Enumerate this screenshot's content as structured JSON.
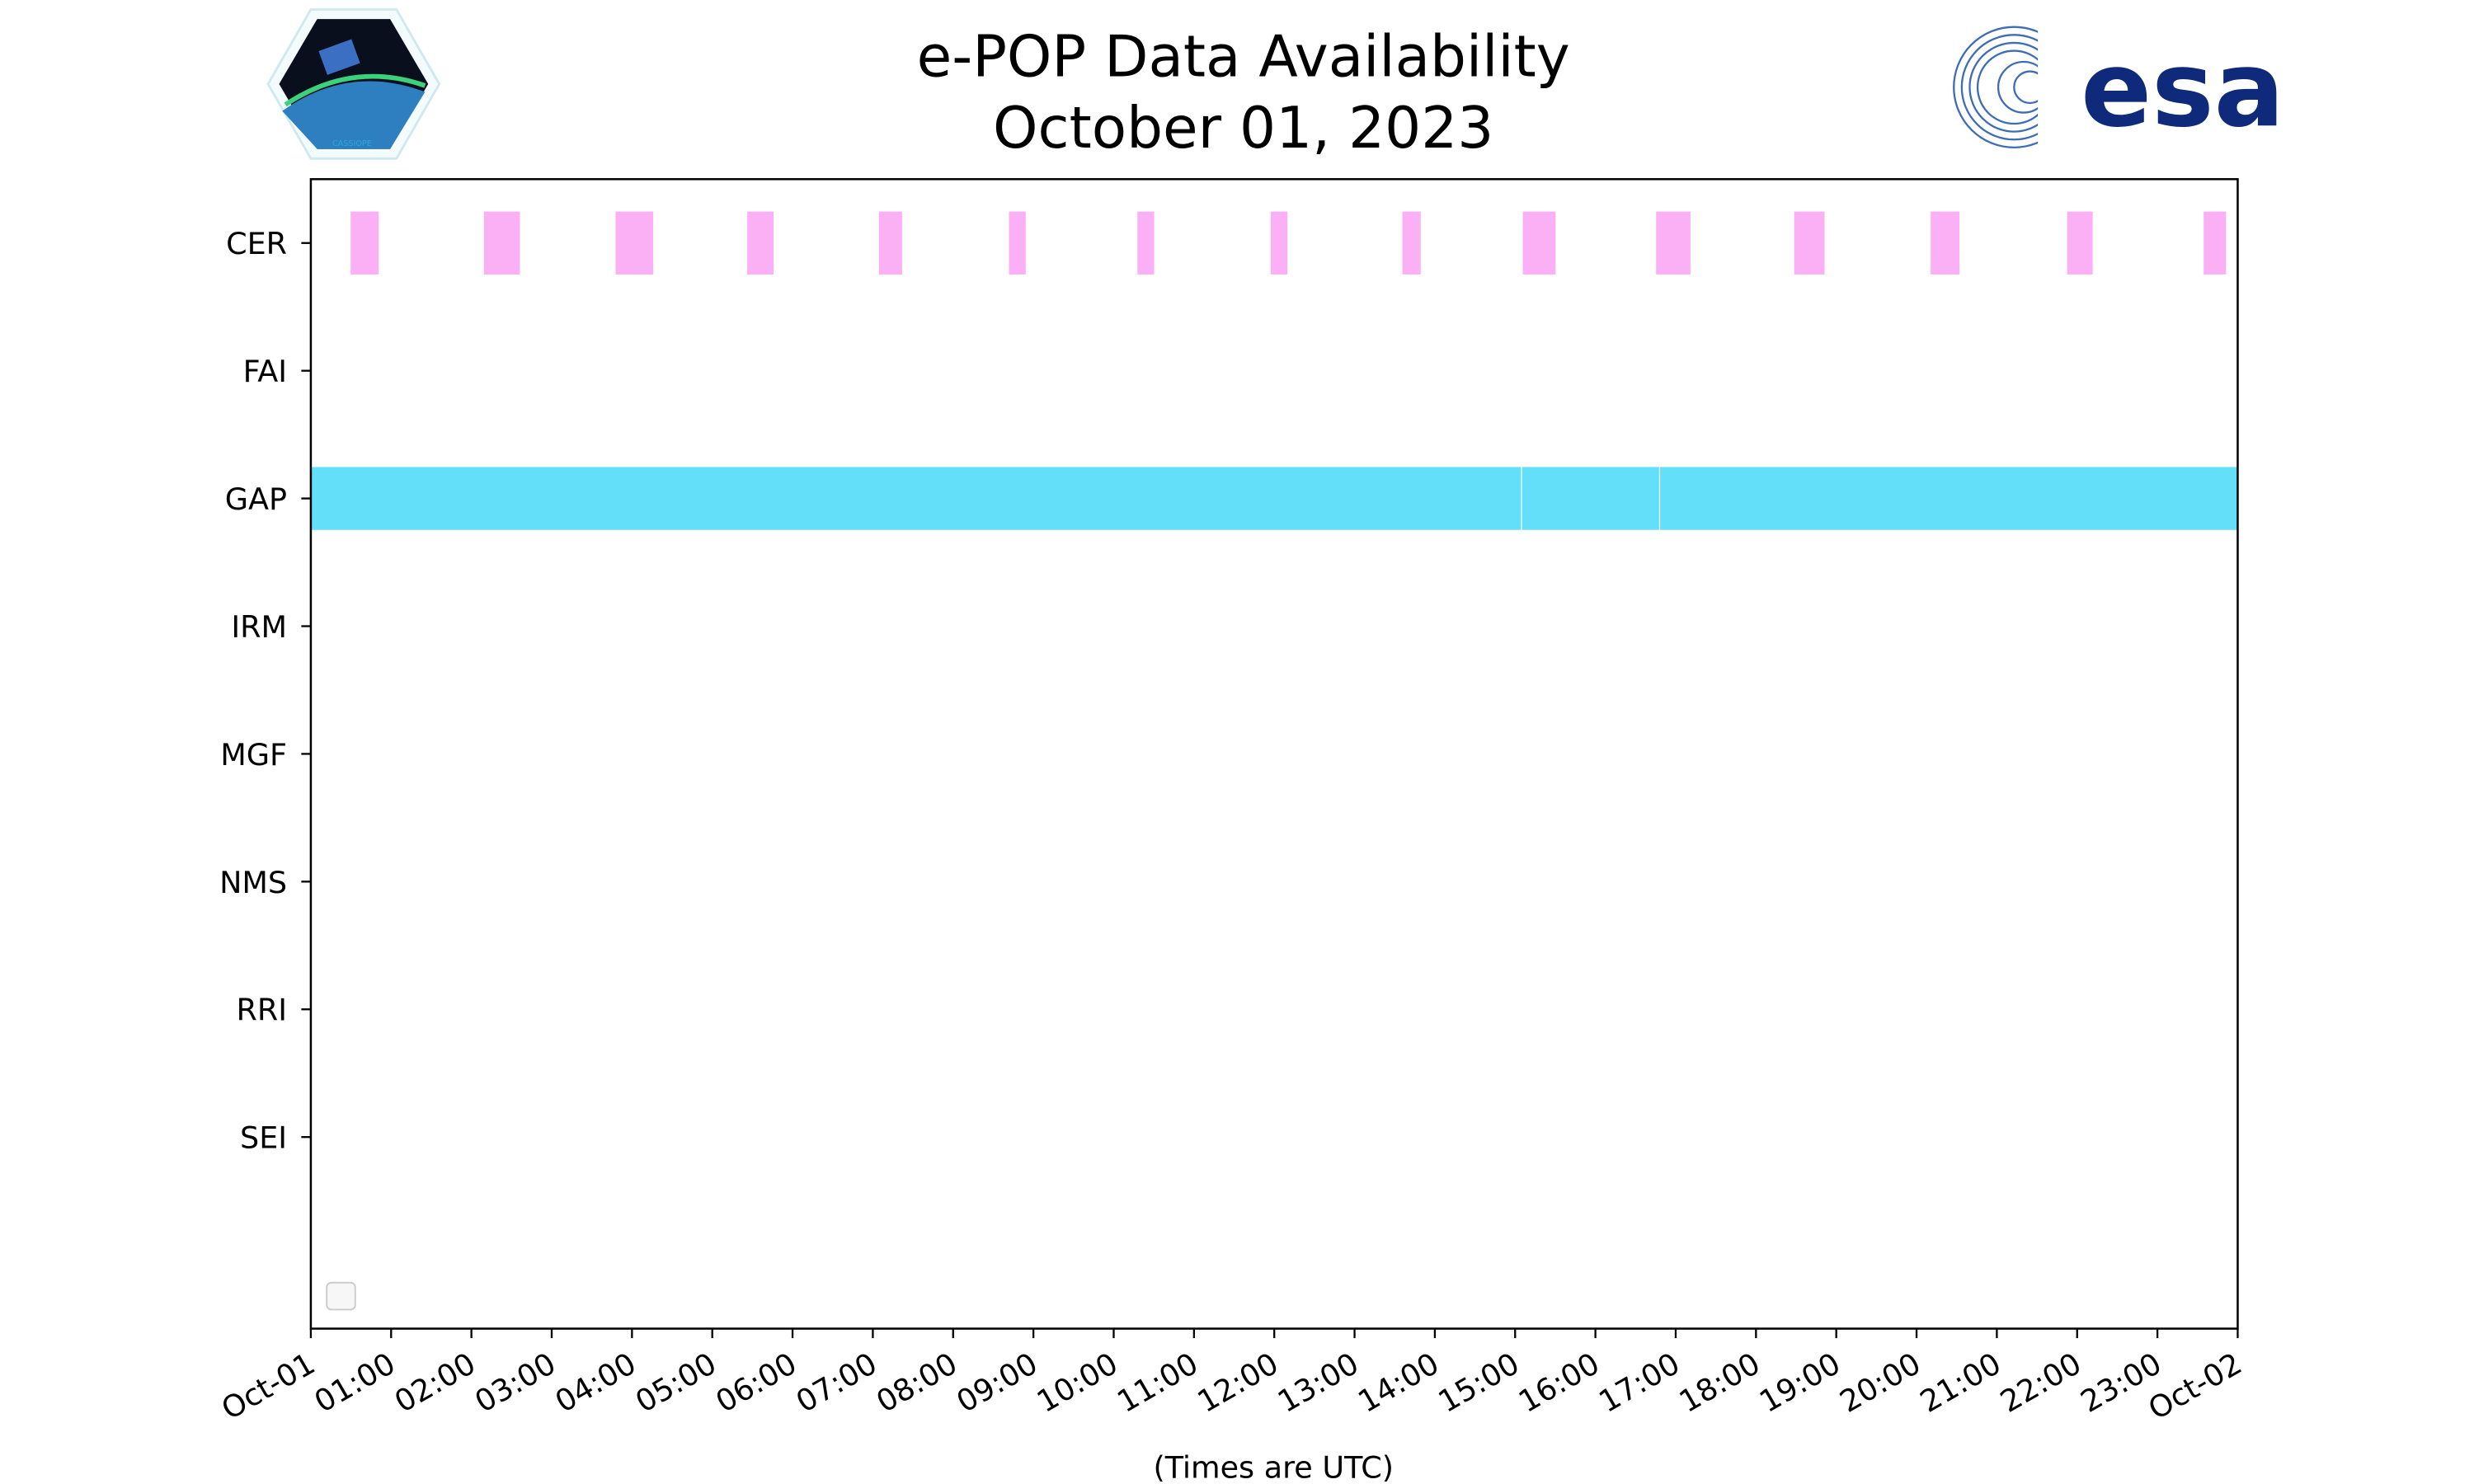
{
  "chart_data": {
    "type": "timeline",
    "title": "e-POP Data Availability",
    "subtitle": "October 01, 2023",
    "xlabel": "(Times are UTC)",
    "ylabel": "",
    "xlim_hours": [
      0,
      24
    ],
    "x_tick_labels": [
      "Oct-01",
      "01:00",
      "02:00",
      "03:00",
      "04:00",
      "05:00",
      "06:00",
      "07:00",
      "08:00",
      "09:00",
      "10:00",
      "11:00",
      "12:00",
      "13:00",
      "14:00",
      "15:00",
      "16:00",
      "17:00",
      "18:00",
      "19:00",
      "20:00",
      "21:00",
      "22:00",
      "23:00",
      "Oct-02"
    ],
    "categories": [
      "CER",
      "FAI",
      "GAP",
      "IRM",
      "MGF",
      "NMS",
      "RRI",
      "SEI"
    ],
    "grid": false,
    "legend": {
      "placement": "lower-left",
      "entries": []
    },
    "series": [
      {
        "name": "CER",
        "color": "#fbaff4",
        "intervals_hours": [
          [
            0.49,
            0.85
          ],
          [
            2.15,
            2.61
          ],
          [
            3.79,
            4.27
          ],
          [
            5.43,
            5.77
          ],
          [
            7.07,
            7.37
          ],
          [
            8.69,
            8.91
          ],
          [
            10.29,
            10.51
          ],
          [
            11.95,
            12.17
          ],
          [
            13.59,
            13.83
          ],
          [
            15.09,
            15.51
          ],
          [
            16.75,
            17.19
          ],
          [
            18.47,
            18.86
          ],
          [
            20.17,
            20.54
          ],
          [
            21.87,
            22.2
          ],
          [
            23.57,
            23.86
          ]
        ]
      },
      {
        "name": "FAI",
        "color": "#fbaff4",
        "intervals_hours": []
      },
      {
        "name": "GAP",
        "color": "#64dffa",
        "intervals_hours": [
          [
            0,
            15.08
          ],
          [
            15.08,
            16.8
          ],
          [
            16.8,
            24
          ]
        ]
      },
      {
        "name": "IRM",
        "color": "#64dffa",
        "intervals_hours": []
      },
      {
        "name": "MGF",
        "color": "#64dffa",
        "intervals_hours": []
      },
      {
        "name": "NMS",
        "color": "#64dffa",
        "intervals_hours": []
      },
      {
        "name": "RRI",
        "color": "#64dffa",
        "intervals_hours": []
      },
      {
        "name": "SEI",
        "color": "#64dffa",
        "intervals_hours": []
      }
    ]
  },
  "logos": {
    "left": "CASSIOPE",
    "right": "esa"
  }
}
